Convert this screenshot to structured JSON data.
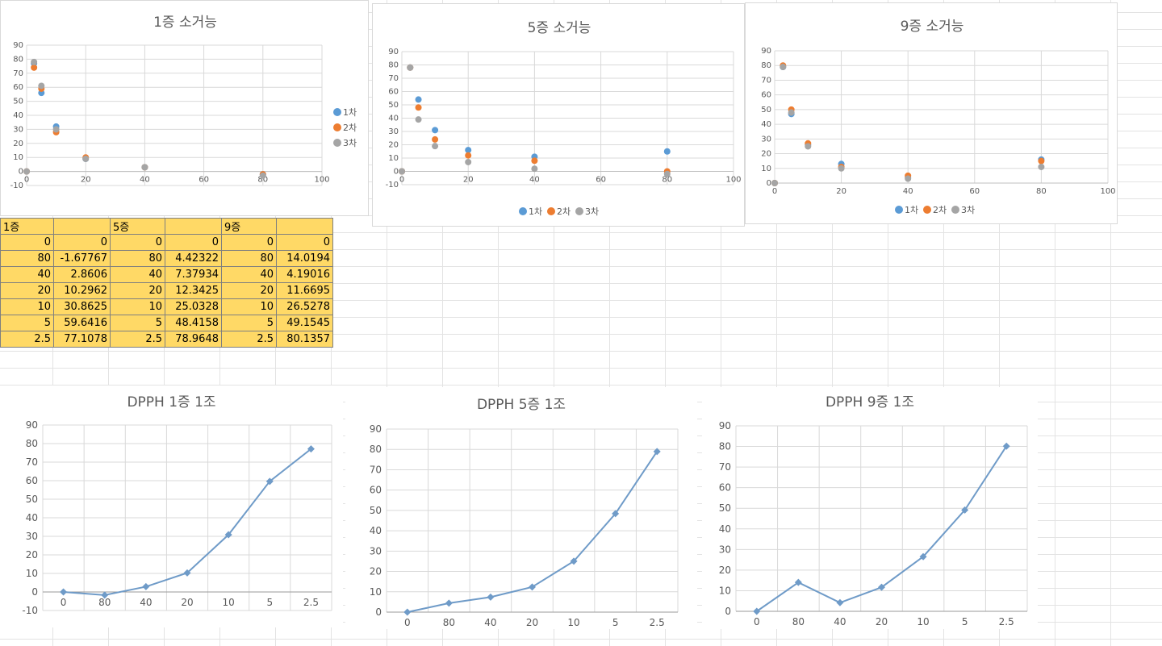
{
  "colors": {
    "s1": "#5b9bd5",
    "s2": "#ed7d31",
    "s3": "#a5a5a5",
    "line": "#6f9bc8",
    "grid": "#d9d9d9",
    "tableFill": "#ffd966"
  },
  "chart_data": [
    {
      "type": "scatter",
      "title": "1증 소거능",
      "xlim": [
        0,
        100
      ],
      "ylim": [
        -10,
        90
      ],
      "xticks": [
        0,
        20,
        40,
        60,
        80,
        100
      ],
      "yticks": [
        -10,
        0,
        10,
        20,
        30,
        40,
        50,
        60,
        70,
        80,
        90
      ],
      "legend": "right",
      "series": [
        {
          "name": "1차",
          "x": [
            0,
            2.5,
            5,
            10,
            20,
            40,
            80
          ],
          "y": [
            0,
            77,
            56,
            32,
            9,
            3,
            -2
          ]
        },
        {
          "name": "2차",
          "x": [
            0,
            2.5,
            5,
            10,
            20,
            40,
            80
          ],
          "y": [
            0,
            74,
            59,
            28,
            10,
            3,
            -2
          ]
        },
        {
          "name": "3차",
          "x": [
            0,
            2.5,
            5,
            10,
            20,
            40,
            80
          ],
          "y": [
            0,
            78,
            61,
            30,
            9,
            3,
            -3
          ]
        }
      ]
    },
    {
      "type": "scatter",
      "title": "5증 소거능",
      "xlim": [
        0,
        100
      ],
      "ylim": [
        -10,
        90
      ],
      "xticks": [
        0,
        20,
        40,
        60,
        80,
        100
      ],
      "yticks": [
        -10,
        0,
        10,
        20,
        30,
        40,
        50,
        60,
        70,
        80,
        90
      ],
      "legend": "bottom",
      "series": [
        {
          "name": "1차",
          "x": [
            0,
            2.5,
            5,
            10,
            20,
            40,
            80
          ],
          "y": [
            0,
            78,
            54,
            31,
            16,
            11,
            15
          ]
        },
        {
          "name": "2차",
          "x": [
            0,
            2.5,
            5,
            10,
            20,
            40,
            80
          ],
          "y": [
            0,
            78,
            48,
            24,
            12,
            8,
            0
          ]
        },
        {
          "name": "3차",
          "x": [
            0,
            2.5,
            5,
            10,
            20,
            40,
            80
          ],
          "y": [
            0,
            78,
            39,
            19,
            7,
            2,
            -2
          ]
        }
      ]
    },
    {
      "type": "scatter",
      "title": "9증 소거능",
      "xlim": [
        0,
        100
      ],
      "ylim": [
        0,
        90
      ],
      "xticks": [
        0,
        20,
        40,
        60,
        80,
        100
      ],
      "yticks": [
        0,
        10,
        20,
        30,
        40,
        50,
        60,
        70,
        80,
        90
      ],
      "legend": "bottom",
      "series": [
        {
          "name": "1차",
          "x": [
            0,
            2.5,
            5,
            10,
            20,
            40,
            80
          ],
          "y": [
            0,
            79,
            47,
            26,
            13,
            4,
            16
          ]
        },
        {
          "name": "2차",
          "x": [
            0,
            2.5,
            5,
            10,
            20,
            40,
            80
          ],
          "y": [
            0,
            80,
            50,
            27,
            11,
            5,
            15
          ]
        },
        {
          "name": "3차",
          "x": [
            0,
            2.5,
            5,
            10,
            20,
            40,
            80
          ],
          "y": [
            0,
            79,
            48,
            25,
            10,
            3,
            11
          ]
        }
      ]
    },
    {
      "type": "line",
      "title": "DPPH 1증 1조",
      "categories": [
        "0",
        "80",
        "40",
        "20",
        "10",
        "5",
        "2.5"
      ],
      "values": [
        0,
        -1.67767,
        2.8606,
        10.2962,
        30.8625,
        59.6416,
        77.1078
      ],
      "ylim": [
        -10,
        90
      ],
      "yticks": [
        -10,
        0,
        10,
        20,
        30,
        40,
        50,
        60,
        70,
        80,
        90
      ]
    },
    {
      "type": "line",
      "title": "DPPH 5증 1조",
      "categories": [
        "0",
        "80",
        "40",
        "20",
        "10",
        "5",
        "2.5"
      ],
      "values": [
        0,
        4.42322,
        7.37934,
        12.3425,
        25.0328,
        48.4158,
        78.9648
      ],
      "ylim": [
        0,
        90
      ],
      "yticks": [
        0,
        10,
        20,
        30,
        40,
        50,
        60,
        70,
        80,
        90
      ]
    },
    {
      "type": "line",
      "title": "DPPH 9증 1조",
      "categories": [
        "0",
        "80",
        "40",
        "20",
        "10",
        "5",
        "2.5"
      ],
      "values": [
        0,
        14.0194,
        4.19016,
        11.6695,
        26.5278,
        49.1545,
        80.1357
      ],
      "ylim": [
        0,
        90
      ],
      "yticks": [
        0,
        10,
        20,
        30,
        40,
        50,
        60,
        70,
        80,
        90
      ]
    }
  ],
  "table": {
    "headers": [
      "1증",
      "",
      "5증",
      "",
      "9증",
      ""
    ],
    "rows": [
      [
        "0",
        "0",
        "0",
        "0",
        "0",
        "0"
      ],
      [
        "80",
        "-1.67767",
        "80",
        "4.42322",
        "80",
        "14.0194"
      ],
      [
        "40",
        "2.8606",
        "40",
        "7.37934",
        "40",
        "4.19016"
      ],
      [
        "20",
        "10.2962",
        "20",
        "12.3425",
        "20",
        "11.6695"
      ],
      [
        "10",
        "30.8625",
        "10",
        "25.0328",
        "10",
        "26.5278"
      ],
      [
        "5",
        "59.6416",
        "5",
        "48.4158",
        "5",
        "49.1545"
      ],
      [
        "2.5",
        "77.1078",
        "2.5",
        "78.9648",
        "2.5",
        "80.1357"
      ]
    ]
  }
}
